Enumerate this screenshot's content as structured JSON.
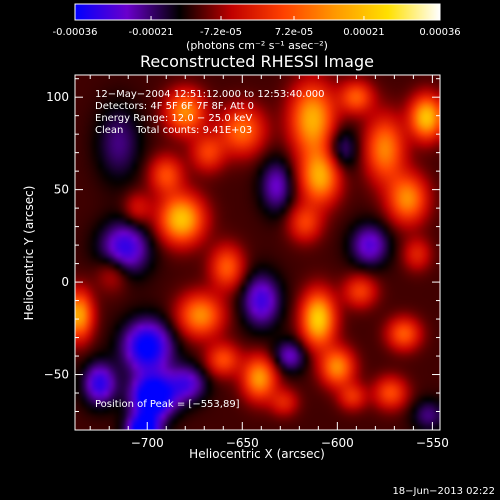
{
  "colorbar": {
    "tick_labels": [
      "-0.00036",
      "-0.00021",
      "-7.2e-05",
      "7.2e-05",
      "0.00021",
      "0.00036"
    ],
    "ticks": [
      -0.00036,
      -0.00021,
      -7.2e-05,
      7.2e-05,
      0.00021,
      0.00036
    ],
    "range": [
      -0.00036,
      0.00036
    ],
    "unit_label": "(photons cm⁻² s⁻¹ asec⁻²)",
    "colors": [
      "#0000ff",
      "#6a00cc",
      "#000000",
      "#c00000",
      "#ff4000",
      "#ff9900",
      "#ffe000",
      "#ffffff"
    ]
  },
  "chart_data": {
    "type": "heatmap",
    "title": "Reconstructed RHESSI Image",
    "xlabel": "Heliocentric X (arcsec)",
    "ylabel": "Heliocentric Y (arcsec)",
    "xlim": [
      -738,
      -546
    ],
    "ylim": [
      -80,
      112
    ],
    "x_ticks": [
      -700,
      -650,
      -600,
      -550
    ],
    "y_ticks": [
      -50,
      0,
      50,
      100
    ],
    "x_tick_labels": [
      "−700",
      "−650",
      "−600",
      "−550"
    ],
    "y_tick_labels": [
      "−50",
      "0",
      "50",
      "100"
    ],
    "grid": false,
    "annotations": [
      "12−May−2004 12:51:12.000 to 12:53:40.000",
      "Detectors: 4F 5F 6F 7F 8F, Att 0",
      "Energy Range: 12.0 − 25.0 keV",
      "Clean    Total counts: 9.41E+03"
    ],
    "peak_label": "Position of Peak = [−553,89]",
    "peak_position": [
      -553,
      89
    ],
    "sources": [
      {
        "x": -680,
        "y": 92,
        "sx": 7,
        "sy": 8,
        "v": 0.00026
      },
      {
        "x": -650,
        "y": 82,
        "sx": 8,
        "sy": 9,
        "v": 0.00022
      },
      {
        "x": -668,
        "y": 70,
        "sx": 6,
        "sy": 7,
        "v": 0.00016
      },
      {
        "x": -682,
        "y": 34,
        "sx": 8,
        "sy": 9,
        "v": 0.00034
      },
      {
        "x": -690,
        "y": 58,
        "sx": 6,
        "sy": 7,
        "v": 0.00018
      },
      {
        "x": -613,
        "y": 88,
        "sx": 8,
        "sy": 13,
        "v": 0.00031
      },
      {
        "x": -609,
        "y": 57,
        "sx": 7,
        "sy": 10,
        "v": 0.0003
      },
      {
        "x": -617,
        "y": 32,
        "sx": 6,
        "sy": 7,
        "v": 0.00016
      },
      {
        "x": -590,
        "y": 100,
        "sx": 6,
        "sy": 6,
        "v": 0.0002
      },
      {
        "x": -575,
        "y": 72,
        "sx": 7,
        "sy": 12,
        "v": 0.00025
      },
      {
        "x": -563,
        "y": 45,
        "sx": 7,
        "sy": 9,
        "v": 0.00026
      },
      {
        "x": -553,
        "y": 89,
        "sx": 6,
        "sy": 8,
        "v": 0.00034
      },
      {
        "x": -558,
        "y": 15,
        "sx": 5,
        "sy": 6,
        "v": 0.00012
      },
      {
        "x": -736,
        "y": -18,
        "sx": 5,
        "sy": 9,
        "v": 0.0003
      },
      {
        "x": -718,
        "y": 5,
        "sx": 6,
        "sy": 7,
        "v": 0.0001
      },
      {
        "x": -672,
        "y": -18,
        "sx": 8,
        "sy": 8,
        "v": 0.00026
      },
      {
        "x": -660,
        "y": -42,
        "sx": 6,
        "sy": 6,
        "v": 0.00018
      },
      {
        "x": -641,
        "y": -52,
        "sx": 6,
        "sy": 8,
        "v": 0.00028
      },
      {
        "x": -658,
        "y": 8,
        "sx": 6,
        "sy": 8,
        "v": 0.0002
      },
      {
        "x": -610,
        "y": -20,
        "sx": 6,
        "sy": 10,
        "v": 0.00036
      },
      {
        "x": -600,
        "y": -46,
        "sx": 6,
        "sy": 7,
        "v": 0.00026
      },
      {
        "x": -588,
        "y": -5,
        "sx": 6,
        "sy": 6,
        "v": 0.00016
      },
      {
        "x": -565,
        "y": -28,
        "sx": 6,
        "sy": 6,
        "v": 0.0002
      },
      {
        "x": -572,
        "y": -60,
        "sx": 6,
        "sy": 6,
        "v": 0.00018
      },
      {
        "x": -592,
        "y": -62,
        "sx": 5,
        "sy": 5,
        "v": 0.00014
      },
      {
        "x": -628,
        "y": -65,
        "sx": 5,
        "sy": 5,
        "v": 0.00012
      },
      {
        "x": -705,
        "y": 40,
        "sx": 5,
        "sy": 6,
        "v": 0.0001
      },
      {
        "x": -715,
        "y": 75,
        "sx": 8,
        "sy": 14,
        "v": -0.0001
      },
      {
        "x": -712,
        "y": 18,
        "sx": 9,
        "sy": 10,
        "v": -0.0002
      },
      {
        "x": -700,
        "y": -35,
        "sx": 9,
        "sy": 10,
        "v": -0.00026
      },
      {
        "x": -697,
        "y": -62,
        "sx": 8,
        "sy": 8,
        "v": -0.00032
      },
      {
        "x": -702,
        "y": -80,
        "sx": 6,
        "sy": 6,
        "v": -0.0003
      },
      {
        "x": -725,
        "y": -55,
        "sx": 6,
        "sy": 8,
        "v": -0.0002
      },
      {
        "x": -679,
        "y": -55,
        "sx": 7,
        "sy": 7,
        "v": -0.00016
      },
      {
        "x": -632,
        "y": 52,
        "sx": 6,
        "sy": 10,
        "v": -0.00014
      },
      {
        "x": -640,
        "y": -10,
        "sx": 7,
        "sy": 10,
        "v": -0.00018
      },
      {
        "x": -625,
        "y": -40,
        "sx": 6,
        "sy": 6,
        "v": -0.00014
      },
      {
        "x": -598,
        "y": 72,
        "sx": 6,
        "sy": 8,
        "v": -0.00012
      },
      {
        "x": -583,
        "y": 20,
        "sx": 7,
        "sy": 8,
        "v": -0.00016
      },
      {
        "x": -552,
        "y": -72,
        "sx": 6,
        "sy": 6,
        "v": -0.0001
      }
    ],
    "background": -0.00012
  },
  "footer": {
    "timestamp": "18−Jun−2013 02:22"
  }
}
